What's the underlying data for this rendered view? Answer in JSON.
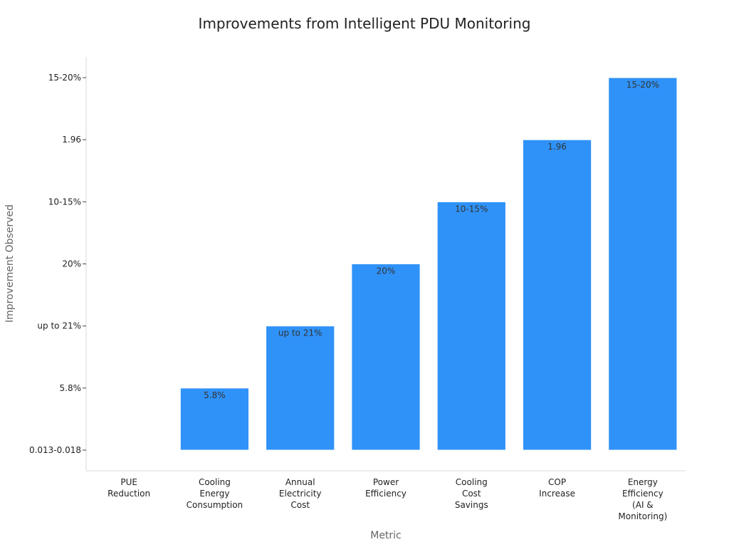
{
  "chart_data": {
    "type": "bar",
    "title": "Improvements from Intelligent PDU Monitoring",
    "xlabel": "Metric",
    "ylabel": "Improvement Observed",
    "y_categories": [
      "0.013-0.018",
      "5.8%",
      "up to 21%",
      "20%",
      "10-15%",
      "1.96",
      "15-20%"
    ],
    "categories": [
      [
        "PUE",
        "Reduction"
      ],
      [
        "Cooling",
        "Energy",
        "Consumption"
      ],
      [
        "Annual",
        "Electricity",
        "Cost"
      ],
      [
        "Power",
        "Efficiency"
      ],
      [
        "Cooling",
        "Cost",
        "Savings"
      ],
      [
        "COP",
        "Increase"
      ],
      [
        "Energy",
        "Efficiency",
        "(AI &",
        "Monitoring)"
      ]
    ],
    "values": [
      "0.013-0.018",
      "5.8%",
      "up to 21%",
      "20%",
      "10-15%",
      "1.96",
      "15-20%"
    ],
    "data_labels": [
      "",
      "5.8%",
      "up to 21%",
      "20%",
      "10-15%",
      "1.96",
      "15-20%"
    ],
    "bar_color": "#2f92f8",
    "legend": "none",
    "grid": false
  }
}
